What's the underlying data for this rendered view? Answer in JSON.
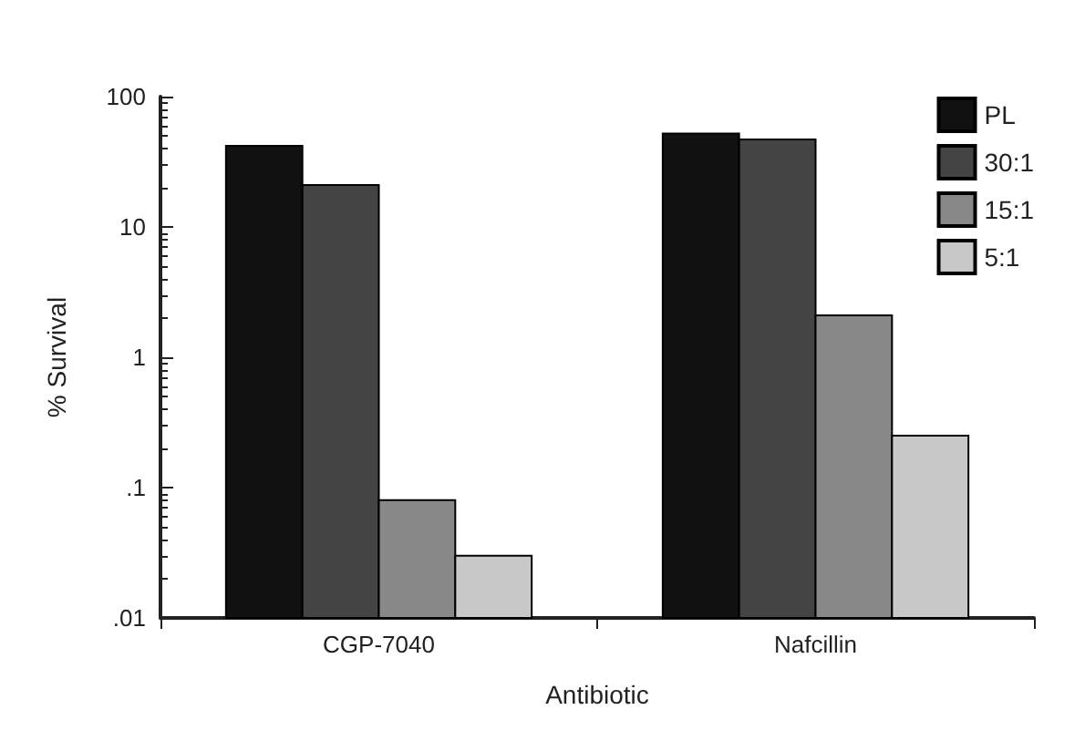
{
  "chart_data": {
    "type": "bar",
    "xlabel": "Antibiotic",
    "ylabel": "% Survival",
    "categories": [
      "CGP-7040",
      "Nafcillin"
    ],
    "series": [
      {
        "name": "PL",
        "color": "#111111",
        "values": [
          42,
          52
        ]
      },
      {
        "name": "30:1",
        "color": "#444444",
        "values": [
          21,
          47
        ]
      },
      {
        "name": "15:1",
        "color": "#888888",
        "values": [
          0.08,
          2.1
        ]
      },
      {
        "name": "5:1",
        "color": "#c8c8c8",
        "values": [
          0.03,
          0.25
        ]
      }
    ],
    "log": "y",
    "ylim": [
      0.01,
      100
    ],
    "yticks": [
      {
        "value": 0.01,
        "label": ".01"
      },
      {
        "value": 0.1,
        "label": ".1"
      },
      1,
      10,
      100
    ],
    "grid": false,
    "legend": "top right"
  }
}
